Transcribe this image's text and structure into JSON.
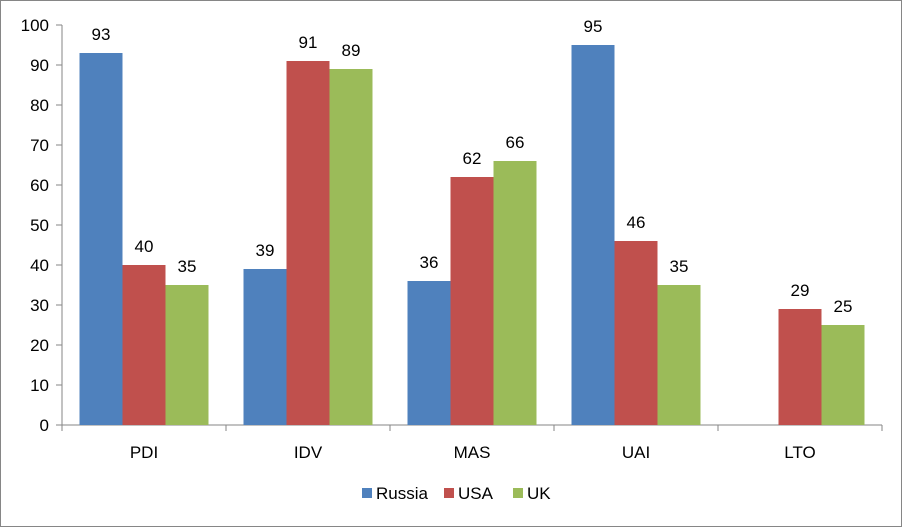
{
  "chart_data": {
    "type": "bar",
    "categories": [
      "PDI",
      "IDV",
      "MAS",
      "UAI",
      "LTO"
    ],
    "series": [
      {
        "name": "Russia",
        "color": "#4F81BD",
        "values": [
          93,
          39,
          36,
          95,
          null
        ]
      },
      {
        "name": "USA",
        "color": "#C0504D",
        "values": [
          40,
          91,
          62,
          46,
          29
        ]
      },
      {
        "name": "UK",
        "color": "#9BBB59",
        "values": [
          35,
          89,
          66,
          35,
          25
        ]
      }
    ],
    "ylim": [
      0,
      100
    ],
    "yticks": [
      0,
      10,
      20,
      30,
      40,
      50,
      60,
      70,
      80,
      90,
      100
    ],
    "grid": false,
    "legend": "bottom",
    "data_labels": true
  }
}
